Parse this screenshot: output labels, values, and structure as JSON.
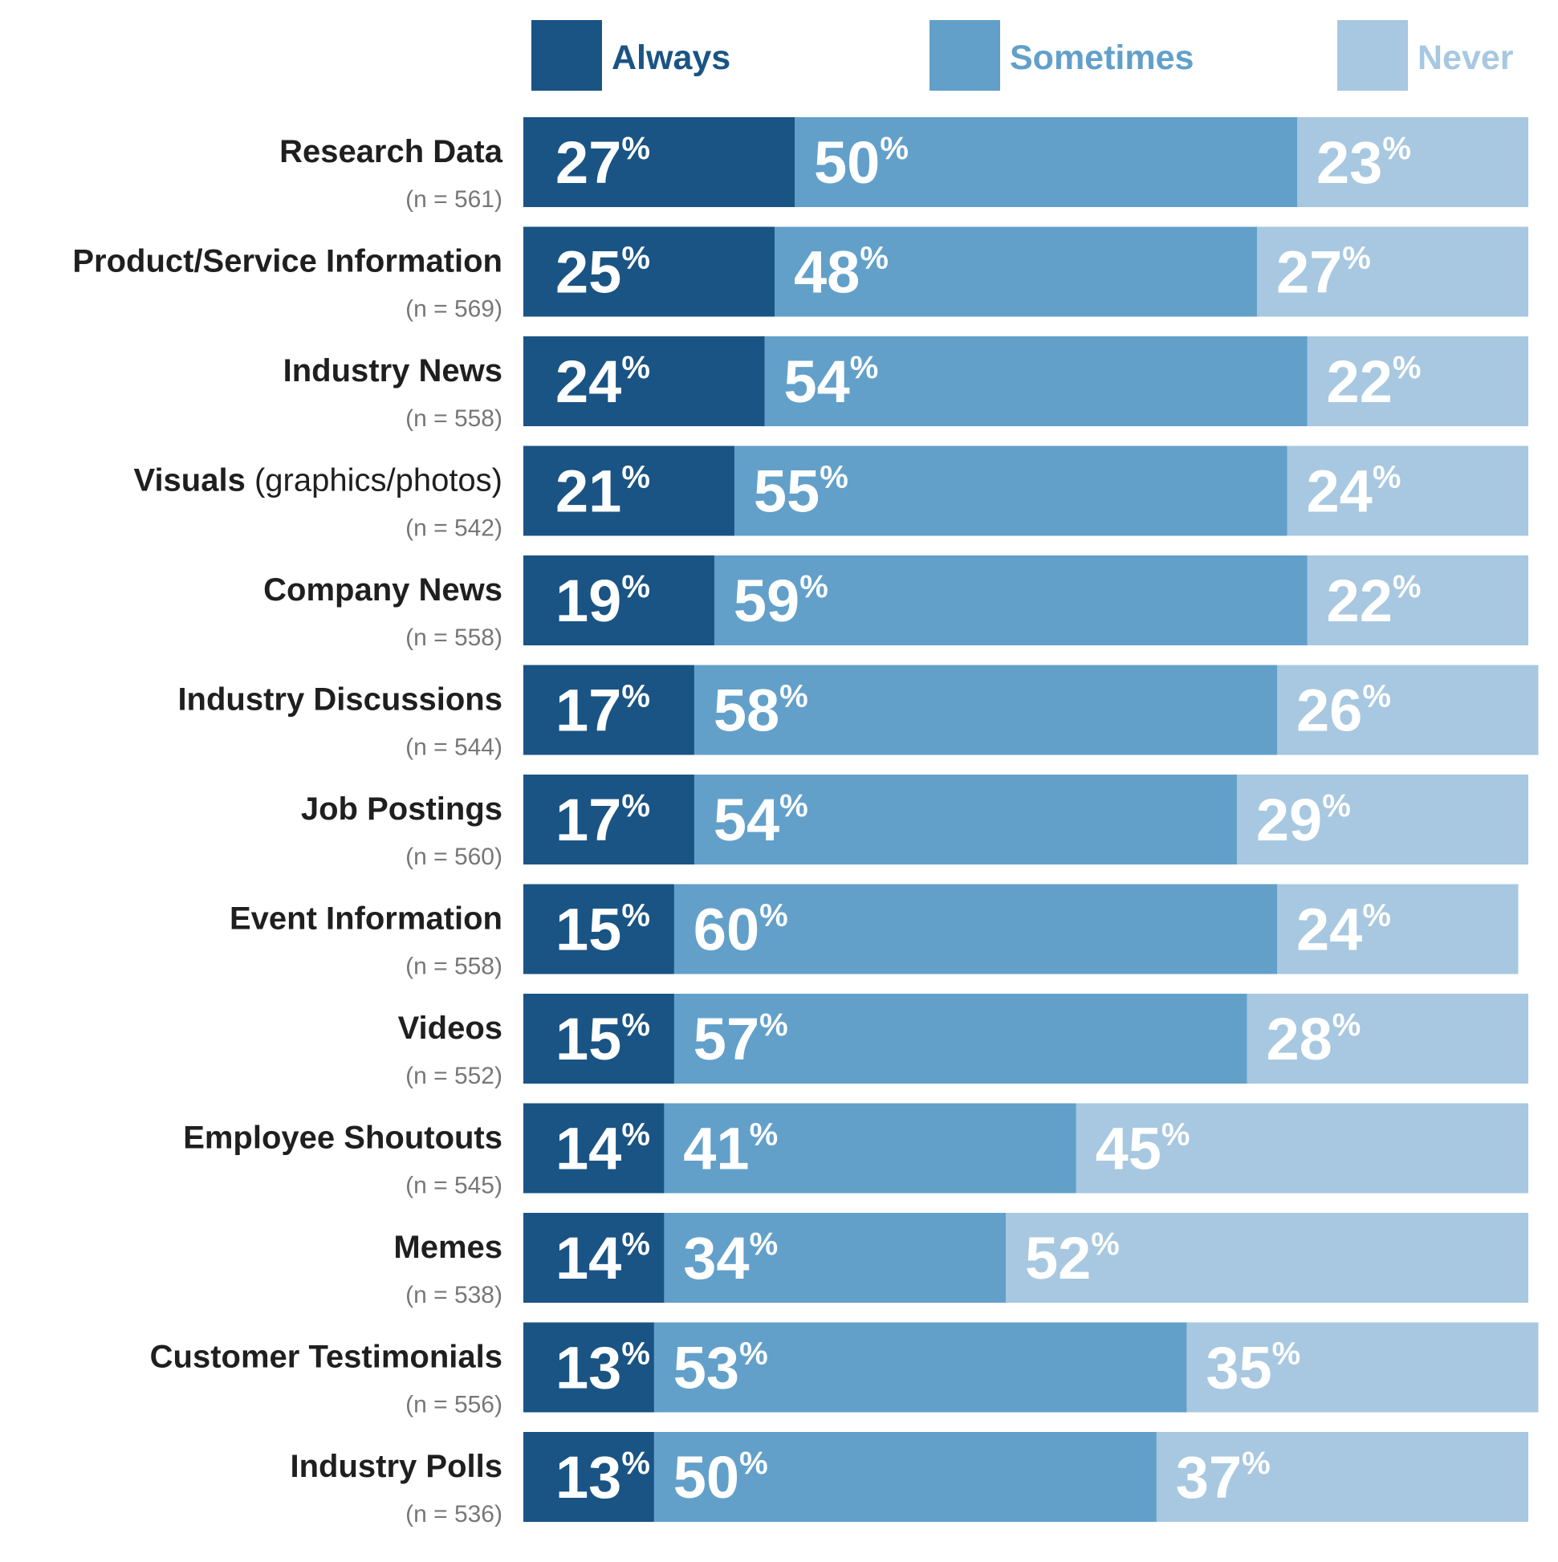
{
  "chart_data": {
    "type": "bar",
    "orientation": "horizontal",
    "stacked": true,
    "normalized": true,
    "title": "",
    "xlabel": "",
    "ylabel": "",
    "xlim": [
      0,
      100
    ],
    "unit_suffix": "%",
    "legend_position": "top",
    "grid": false,
    "categories": [
      {
        "name": "Research Data",
        "qualifier": "",
        "n_label": "(n = 561)"
      },
      {
        "name": "Product/Service Information",
        "qualifier": "",
        "n_label": "(n = 569)"
      },
      {
        "name": "Industry News",
        "qualifier": "",
        "n_label": "(n = 558)"
      },
      {
        "name": "Visuals",
        "qualifier": "(graphics/photos)",
        "n_label": "(n = 542)"
      },
      {
        "name": "Company News",
        "qualifier": "",
        "n_label": "(n = 558)"
      },
      {
        "name": "Industry Discussions",
        "qualifier": "",
        "n_label": "(n = 544)"
      },
      {
        "name": "Job Postings",
        "qualifier": "",
        "n_label": "(n = 560)"
      },
      {
        "name": "Event Information",
        "qualifier": "",
        "n_label": "(n = 558)"
      },
      {
        "name": "Videos",
        "qualifier": "",
        "n_label": "(n = 552)"
      },
      {
        "name": "Employee Shoutouts",
        "qualifier": "",
        "n_label": "(n = 545)"
      },
      {
        "name": "Memes",
        "qualifier": "",
        "n_label": "(n = 538)"
      },
      {
        "name": "Customer Testimonials",
        "qualifier": "",
        "n_label": "(n = 556)"
      },
      {
        "name": "Industry Polls",
        "qualifier": "",
        "n_label": "(n = 536)"
      }
    ],
    "series": [
      {
        "name": "Always",
        "color": "#1a5484",
        "legend_text_color": "#1a5484",
        "values": [
          27,
          25,
          24,
          21,
          19,
          17,
          17,
          15,
          15,
          14,
          14,
          13,
          13
        ]
      },
      {
        "name": "Sometimes",
        "color": "#62a0ca",
        "legend_text_color": "#62a0ca",
        "values": [
          50,
          48,
          54,
          55,
          59,
          58,
          54,
          60,
          57,
          41,
          34,
          53,
          50
        ]
      },
      {
        "name": "Never",
        "color": "#a7c8e0",
        "legend_text_color": "#a7c8e0",
        "values": [
          23,
          27,
          22,
          24,
          22,
          26,
          29,
          24,
          28,
          45,
          52,
          35,
          37
        ]
      }
    ]
  }
}
